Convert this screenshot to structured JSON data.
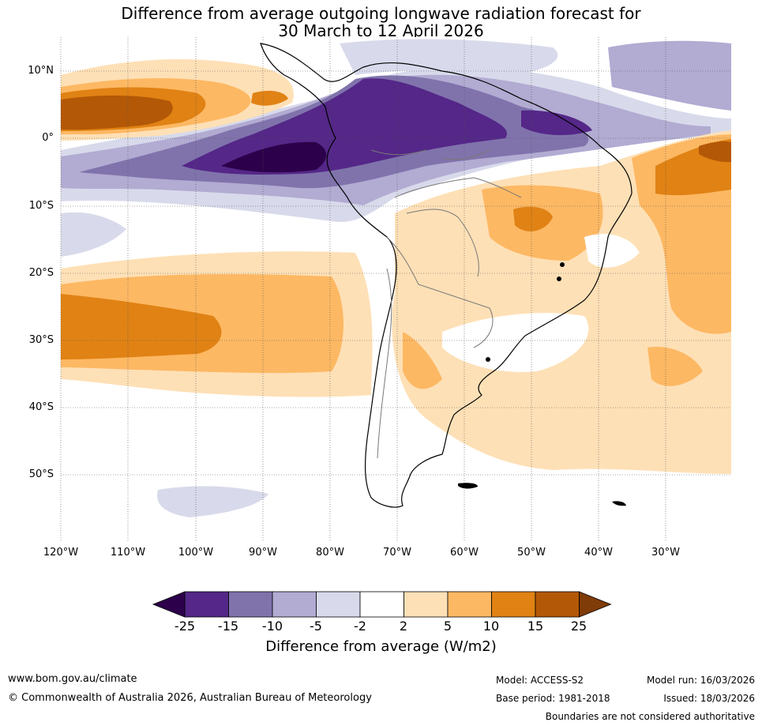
{
  "title_line1": "Difference from average outgoing longwave radiation forecast for",
  "title_line2": "30 March to 12 April 2026",
  "lat_labels": [
    "10°N",
    "0°",
    "10°S",
    "20°S",
    "30°S",
    "40°S",
    "50°S"
  ],
  "lon_labels": [
    "120°W",
    "110°W",
    "100°W",
    "90°W",
    "80°W",
    "70°W",
    "60°W",
    "50°W",
    "40°W",
    "30°W"
  ],
  "colorbar": {
    "ticks": [
      "-25",
      "-15",
      "-10",
      "-5",
      "-2",
      "2",
      "5",
      "10",
      "15",
      "25"
    ],
    "colors": [
      "#2d004b",
      "#542788",
      "#8073ac",
      "#b2abd2",
      "#d8daeb",
      "#ffffff",
      "#fee0b6",
      "#fdb863",
      "#e08214",
      "#b35806",
      "#7f3b08"
    ],
    "label": "Difference from average (W/m2)"
  },
  "footer": {
    "url": "www.bom.gov.au/climate",
    "copyright": "© Commonwealth of Australia 2026, Australian Bureau of Meteorology",
    "model": "Model: ACCESS-S2",
    "base_period": "Base period: 1981-2018",
    "model_run": "Model run: 16/03/2026",
    "issued": "Issued: 18/03/2026",
    "disclaimer": "Boundaries are not considered authoritative"
  }
}
